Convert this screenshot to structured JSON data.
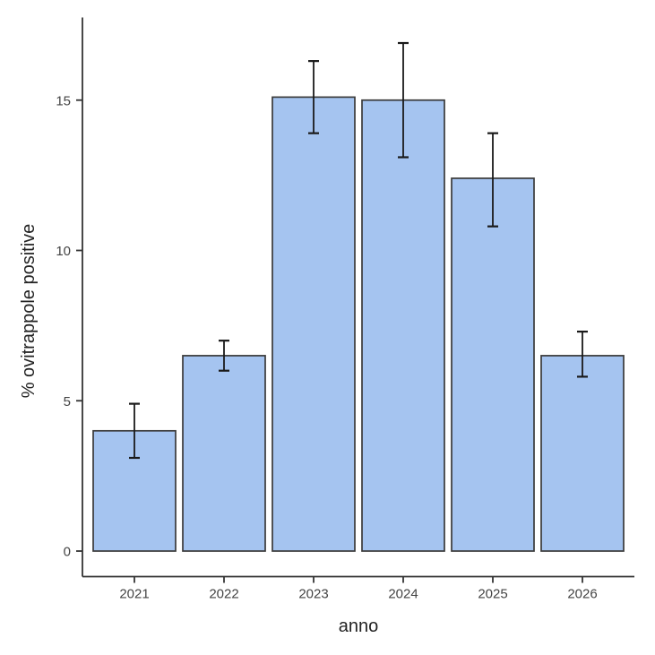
{
  "chart_data": {
    "type": "bar",
    "title": "",
    "xlabel": "anno",
    "ylabel": "% ovitrappole positive",
    "categories": [
      "2021",
      "2022",
      "2023",
      "2024",
      "2025",
      "2026"
    ],
    "values": [
      4.0,
      6.5,
      15.1,
      15.0,
      12.4,
      6.5
    ],
    "error_low": [
      3.1,
      6.0,
      13.9,
      13.1,
      10.8,
      5.8
    ],
    "error_high": [
      4.9,
      7.0,
      16.3,
      16.9,
      13.9,
      7.3
    ],
    "yticks": [
      0,
      5,
      10,
      15
    ],
    "ylim": [
      -0.85,
      17.75
    ],
    "grid": "off",
    "legend": "none",
    "error_bars": true,
    "colors": {
      "bar_fill": "#a5c4f0",
      "bar_border": "#3a3a3a",
      "error_bar": "#1a1a1a",
      "axis_line": "#333333",
      "tick_label": "#444444",
      "axis_title": "#222222",
      "background": "#ffffff"
    }
  }
}
